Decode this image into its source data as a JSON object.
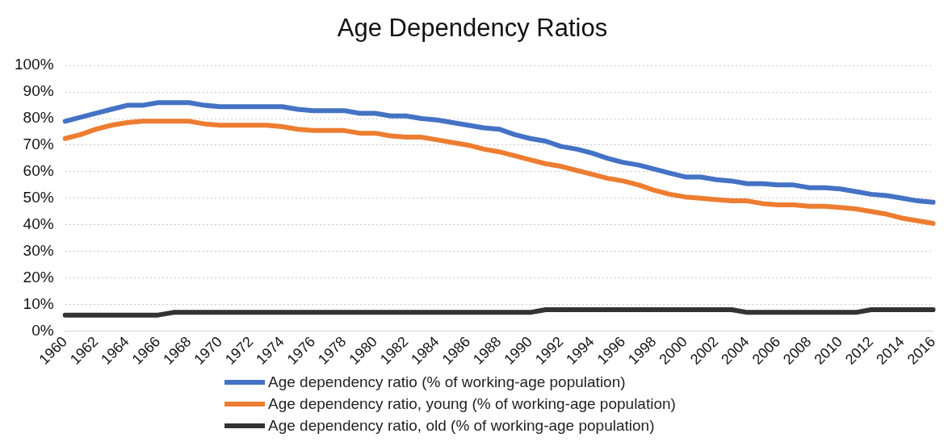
{
  "chart_data": {
    "type": "line",
    "title": "Age Dependency Ratios",
    "categories": [
      "1960",
      null,
      "1962",
      null,
      "1964",
      null,
      "1966",
      null,
      "1968",
      null,
      "1970",
      null,
      "1972",
      null,
      "1974",
      null,
      "1976",
      null,
      "1978",
      null,
      "1980",
      null,
      "1982",
      null,
      "1984",
      null,
      "1986",
      null,
      "1988",
      null,
      "1990",
      null,
      "1992",
      null,
      "1994",
      null,
      "1996",
      null,
      "1998",
      null,
      "2000",
      null,
      "2002",
      null,
      "2004",
      null,
      "2006",
      null,
      "2008",
      null,
      "2010",
      null,
      "2012",
      null,
      "2014",
      null,
      "2016"
    ],
    "series": [
      {
        "name": "Age dependency ratio (% of working-age population)",
        "color": "#4472c4",
        "values": [
          79,
          80.5,
          82,
          83.5,
          85,
          85,
          86,
          86,
          86,
          85,
          84.5,
          84.5,
          84.5,
          84.5,
          84.5,
          83.5,
          83,
          83,
          83,
          82,
          82,
          81,
          81,
          80,
          79.5,
          78.5,
          77.5,
          76.5,
          76,
          74,
          72.5,
          71.5,
          69.5,
          68.5,
          67,
          65,
          63.5,
          62.5,
          61,
          59.5,
          58,
          58,
          57,
          56.5,
          55.5,
          55.5,
          55,
          55,
          54,
          54,
          53.5,
          52.5,
          51.5,
          51,
          50,
          49,
          48.5
        ]
      },
      {
        "name": "Age dependency ratio, young (% of working-age population)",
        "color": "#ed7d31",
        "values": [
          72.5,
          74,
          76,
          77.5,
          78.5,
          79,
          79,
          79,
          79,
          78,
          77.5,
          77.5,
          77.5,
          77.5,
          77,
          76,
          75.5,
          75.5,
          75.5,
          74.5,
          74.5,
          73.5,
          73,
          73,
          72,
          71,
          70,
          68.5,
          67.5,
          66,
          64.5,
          63,
          62,
          60.5,
          59,
          57.5,
          56.5,
          55,
          53,
          51.5,
          50.5,
          50,
          49.5,
          49,
          49,
          48,
          47.5,
          47.5,
          47,
          47,
          46.5,
          46,
          45,
          44,
          42.5,
          41.5,
          40.5
        ]
      },
      {
        "name": "Age dependency ratio, old (% of working-age population)",
        "color": "#333333",
        "values": [
          6,
          6,
          6,
          6,
          6,
          6,
          6,
          7,
          7,
          7,
          7,
          7,
          7,
          7,
          7,
          7,
          7,
          7,
          7,
          7,
          7,
          7,
          7,
          7,
          7,
          7,
          7,
          7,
          7,
          7,
          7,
          8,
          8,
          8,
          8,
          8,
          8,
          8,
          8,
          8,
          8,
          8,
          8,
          8,
          7,
          7,
          7,
          7,
          7,
          7,
          7,
          7,
          8,
          8,
          8,
          8,
          8
        ]
      }
    ],
    "ylim": [
      0,
      100
    ],
    "yticks": [
      {
        "value": 0,
        "label": "0%"
      },
      {
        "value": 10,
        "label": "10%"
      },
      {
        "value": 20,
        "label": "20%"
      },
      {
        "value": 30,
        "label": "30%"
      },
      {
        "value": 40,
        "label": "40%"
      },
      {
        "value": 50,
        "label": "50%"
      },
      {
        "value": 60,
        "label": "60%"
      },
      {
        "value": 70,
        "label": "70%"
      },
      {
        "value": 80,
        "label": "80%"
      },
      {
        "value": 90,
        "label": "90%"
      },
      {
        "value": 100,
        "label": "100%"
      }
    ],
    "grid": "y",
    "legend": "bottom",
    "marker": "none",
    "line_style": "solid"
  }
}
